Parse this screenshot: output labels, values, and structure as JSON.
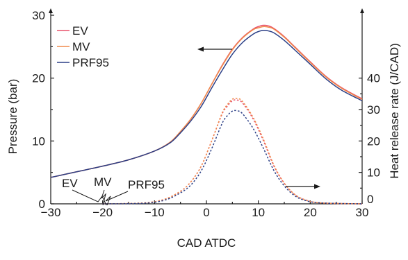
{
  "chart_data": {
    "type": "line",
    "xlabel": "CAD ATDC",
    "ylabel_left": "Pressure (bar)",
    "ylabel_right": "Heat release rate (J/CAD)",
    "xlim": [
      -30,
      30
    ],
    "ylim_left": [
      0,
      30
    ],
    "ylim_right": [
      0,
      60
    ],
    "x_ticks": [
      -30,
      -20,
      -10,
      0,
      10,
      20,
      30
    ],
    "x_tick_labels": [
      "−30",
      "−20",
      "−10",
      "0",
      "10",
      "20",
      "30"
    ],
    "y_left_ticks": [
      0,
      10,
      20,
      30
    ],
    "y_left_tick_labels": [
      "0",
      "10",
      "20",
      "30"
    ],
    "y_right_ticks": [
      0,
      10,
      20,
      30,
      40
    ],
    "y_right_tick_labels": [
      "0",
      "10",
      "20",
      "30",
      "40"
    ],
    "grid": false,
    "legend_position": "top-left",
    "colors": {
      "EV": "#e8506a",
      "MV": "#f08a4b",
      "PRF95": "#2b3f86"
    },
    "pressure_series": [
      {
        "name": "EV",
        "color": "#e8506a",
        "x": [
          -30,
          -25,
          -20,
          -15,
          -10,
          -7,
          -5,
          -3,
          -1,
          1,
          3,
          5,
          7,
          9,
          10,
          11,
          12,
          13,
          15,
          17,
          20,
          23,
          26,
          30
        ],
        "y": [
          4.2,
          5.1,
          6.0,
          7.0,
          8.4,
          9.8,
          11.5,
          13.5,
          16.0,
          19.0,
          22.0,
          24.6,
          26.5,
          27.8,
          28.2,
          28.4,
          28.3,
          27.9,
          26.6,
          25.0,
          22.6,
          20.3,
          18.5,
          16.7
        ]
      },
      {
        "name": "MV",
        "color": "#f08a4b",
        "x": [
          -30,
          -25,
          -20,
          -15,
          -10,
          -7,
          -5,
          -3,
          -1,
          1,
          3,
          5,
          7,
          9,
          10,
          11,
          12,
          13,
          15,
          17,
          20,
          23,
          26,
          30
        ],
        "y": [
          4.2,
          5.1,
          6.0,
          7.0,
          8.4,
          9.8,
          11.5,
          13.5,
          16.0,
          19.0,
          21.9,
          24.5,
          26.4,
          27.7,
          28.0,
          28.2,
          28.1,
          27.8,
          26.5,
          24.9,
          22.5,
          20.2,
          18.4,
          16.6
        ]
      },
      {
        "name": "PRF95",
        "color": "#2b3f86",
        "x": [
          -30,
          -25,
          -20,
          -15,
          -10,
          -7,
          -5,
          -3,
          -1,
          1,
          3,
          5,
          7,
          9,
          10,
          11,
          12,
          13,
          15,
          17,
          20,
          23,
          26,
          30
        ],
        "y": [
          4.2,
          5.1,
          6.0,
          7.0,
          8.4,
          9.7,
          11.3,
          13.2,
          15.5,
          18.4,
          21.2,
          23.8,
          25.7,
          27.0,
          27.4,
          27.6,
          27.5,
          27.2,
          26.0,
          24.5,
          22.2,
          19.9,
          18.1,
          16.4
        ]
      }
    ],
    "heat_release_series": [
      {
        "name": "EV",
        "color": "#e8506a",
        "x": [
          -20,
          -12,
          -8,
          -5,
          -3,
          -1,
          1,
          3,
          4,
          5,
          6,
          7,
          9,
          11,
          13,
          15,
          17,
          19,
          22,
          30
        ],
        "y": [
          0,
          0.3,
          1.5,
          4,
          7,
          12,
          20,
          28.5,
          31,
          32.8,
          33,
          32,
          27,
          20,
          12,
          6.5,
          3,
          1.3,
          0.3,
          0
        ]
      },
      {
        "name": "MV",
        "color": "#f08a4b",
        "x": [
          -20,
          -12,
          -8,
          -5,
          -3,
          -1,
          1,
          3,
          4,
          5,
          6,
          7,
          9,
          11,
          13,
          15,
          17,
          19,
          22,
          30
        ],
        "y": [
          0,
          0.3,
          1.5,
          4,
          7,
          12,
          20,
          28.8,
          31.5,
          33.3,
          33.5,
          32.5,
          27.5,
          20.5,
          12.3,
          6.6,
          3,
          1.3,
          0.3,
          0
        ]
      },
      {
        "name": "PRF95",
        "color": "#2b3f86",
        "x": [
          -20,
          -12,
          -8,
          -5,
          -3,
          -1,
          1,
          3,
          4,
          5,
          6,
          7,
          9,
          11,
          13,
          15,
          17,
          19,
          22,
          30
        ],
        "y": [
          0,
          0.2,
          1.2,
          3.5,
          6,
          10.5,
          17.5,
          25.5,
          28,
          29.5,
          29.6,
          28.6,
          24,
          17.6,
          10.6,
          5.7,
          2.6,
          1.1,
          0.3,
          0
        ]
      }
    ],
    "legend": [
      "EV",
      "MV",
      "PRF95"
    ],
    "annotations": [
      "EV",
      "MV",
      "PRF95"
    ]
  }
}
